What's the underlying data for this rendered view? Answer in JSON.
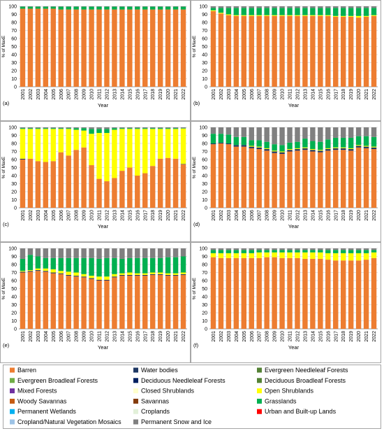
{
  "colors": {
    "Barren": "#ED7D31",
    "Water bodies": "#1F3864",
    "Evergreen Needleleaf Forests": "#548235",
    "Evergreen Broadleaf Forests": "#70AD47",
    "Deciduous Needleleaf Forests": "#002060",
    "Deciduous Broadleaf Forests": "#548235",
    "Mixed Forests": "#7030A0",
    "Closed Shrublands": "#FFFFCC",
    "Open Shrublands": "#FFFF00",
    "Woody Savannas": "#C55A11",
    "Savannas": "#843C0C",
    "Grasslands": "#00B050",
    "Permanent Wetlands": "#00B0F0",
    "Croplands": "#E2F0D9",
    "Urban and Built-up Lands": "#FF0000",
    "Cropland/Natural Vegetation Mosaics": "#9DC3E6",
    "Permanent Snow and Ice": "#808080"
  },
  "legend": {
    "entries": [
      "Barren",
      "Water bodies",
      "Evergreen Needleleaf Forests",
      "Evergreen Broadleaf Forests",
      "Deciduous Needleleaf Forests",
      "Deciduous Broadleaf Forests",
      "Mixed Forests",
      "Closed Shrublands",
      "Open Shrublands",
      "Woody Savannas",
      "Savannas",
      "Grasslands",
      "Permanent Wetlands",
      "Croplands",
      "Urban and Built-up Lands",
      "Cropland/Natural Vegetation Mosaics",
      "Permanent Snow and Ice"
    ]
  },
  "chart_data": [
    {
      "type": "bar",
      "stacked": true,
      "label": "(a)",
      "xlabel": "Year",
      "ylabel": "% of MaxE",
      "ylim": [
        0,
        100
      ],
      "yticks": [
        0,
        10,
        20,
        30,
        40,
        50,
        60,
        70,
        80,
        90,
        100
      ],
      "categories": [
        "2001",
        "2002",
        "2003",
        "2004",
        "2005",
        "2006",
        "2007",
        "2008",
        "2009",
        "2010",
        "2011",
        "2012",
        "2013",
        "2014",
        "2015",
        "2016",
        "2017",
        "2018",
        "2019",
        "2020",
        "2021",
        "2022"
      ],
      "series": [
        {
          "name": "Barren",
          "values": [
            97,
            97,
            97,
            97,
            97,
            96,
            96,
            96,
            96,
            96,
            96,
            96,
            96,
            96,
            96,
            96,
            96,
            96,
            96,
            96,
            96,
            96
          ]
        },
        {
          "name": "Grasslands",
          "values": [
            2.5,
            2.5,
            2.5,
            2.5,
            2.5,
            3.5,
            3.5,
            3.5,
            3.5,
            3.5,
            3.5,
            3.5,
            3.5,
            3.5,
            3.5,
            3.5,
            3.5,
            3.5,
            3.5,
            3.5,
            3.5,
            3.5
          ]
        },
        {
          "name": "Permanent Snow and Ice",
          "values": [
            0.5,
            0.5,
            0.5,
            0.5,
            0.5,
            0.5,
            0.5,
            0.5,
            0.5,
            0.5,
            0.5,
            0.5,
            0.5,
            0.5,
            0.5,
            0.5,
            0.5,
            0.5,
            0.5,
            0.5,
            0.5,
            0.5
          ]
        }
      ]
    },
    {
      "type": "bar",
      "stacked": true,
      "label": "(b)",
      "xlabel": "Year",
      "ylabel": "% of MaxE",
      "ylim": [
        0,
        100
      ],
      "yticks": [
        0,
        10,
        20,
        30,
        40,
        50,
        60,
        70,
        80,
        90,
        100
      ],
      "categories": [
        "2001",
        "2002",
        "2003",
        "2004",
        "2005",
        "2006",
        "2007",
        "2008",
        "2009",
        "2010",
        "2011",
        "2012",
        "2013",
        "2014",
        "2015",
        "2016",
        "2017",
        "2018",
        "2019",
        "2020",
        "2021",
        "2022"
      ],
      "series": [
        {
          "name": "Barren",
          "values": [
            94,
            91,
            89,
            88,
            88,
            88,
            88,
            88,
            88,
            88,
            88,
            88,
            88,
            88,
            88,
            88,
            87,
            87,
            87,
            86,
            87,
            88
          ]
        },
        {
          "name": "Open Shrublands",
          "values": [
            1,
            1,
            1,
            1,
            1,
            1,
            1,
            1,
            1,
            1,
            1,
            1,
            1,
            1,
            1,
            1,
            1,
            1,
            1,
            2,
            1,
            1
          ]
        },
        {
          "name": "Grasslands",
          "values": [
            3,
            6,
            8,
            9,
            9,
            9,
            9,
            9,
            9,
            9,
            9,
            9,
            9,
            9,
            9,
            9,
            10,
            10,
            10,
            10,
            10,
            9
          ]
        },
        {
          "name": "Permanent Snow and Ice",
          "values": [
            2,
            2,
            2,
            2,
            2,
            2,
            2,
            2,
            2,
            2,
            2,
            2,
            2,
            2,
            2,
            2,
            2,
            2,
            2,
            2,
            2,
            2
          ]
        }
      ]
    },
    {
      "type": "bar",
      "stacked": true,
      "label": "(c)",
      "xlabel": "Year",
      "ylabel": "% of MaxE",
      "ylim": [
        0,
        100
      ],
      "yticks": [
        0,
        10,
        20,
        30,
        40,
        50,
        60,
        70,
        80,
        90,
        100
      ],
      "categories": [
        "2001",
        "2002",
        "2003",
        "2004",
        "2005",
        "2006",
        "2007",
        "2008",
        "2009",
        "2010",
        "2011",
        "2012",
        "2013",
        "2014",
        "2015",
        "2016",
        "2017",
        "2018",
        "2019",
        "2020",
        "2021",
        "2022"
      ],
      "series": [
        {
          "name": "Barren",
          "values": [
            60,
            61,
            58,
            57,
            58,
            69,
            65,
            72,
            75,
            53,
            36,
            33,
            37,
            46,
            50,
            40,
            43,
            52,
            61,
            62,
            61,
            54
          ]
        },
        {
          "name": "Water bodies",
          "values": [
            1,
            0,
            0,
            0,
            0,
            0,
            0,
            0,
            0,
            0,
            0,
            0,
            0,
            0,
            0,
            0,
            0,
            0,
            0,
            0,
            0,
            0.5
          ]
        },
        {
          "name": "Open Shrublands",
          "values": [
            37,
            37,
            40,
            41,
            40,
            29,
            33,
            25,
            21,
            39,
            57,
            60,
            60,
            52,
            48,
            58,
            55,
            46,
            37,
            36,
            37,
            44
          ]
        },
        {
          "name": "Grasslands",
          "values": [
            1,
            1,
            1,
            1,
            1,
            1,
            1,
            2,
            3,
            6,
            5,
            5,
            2,
            1,
            1,
            1,
            1,
            1,
            1,
            1,
            1,
            0.5
          ]
        },
        {
          "name": "Permanent Snow and Ice",
          "values": [
            1,
            1,
            1,
            1,
            1,
            1,
            1,
            1,
            1,
            2,
            2,
            2,
            1,
            1,
            1,
            1,
            1,
            1,
            1,
            1,
            1,
            1
          ]
        }
      ]
    },
    {
      "type": "bar",
      "stacked": true,
      "label": "(d)",
      "xlabel": "Year",
      "ylabel": "% of MaxE",
      "ylim": [
        0,
        100
      ],
      "yticks": [
        0,
        10,
        20,
        30,
        40,
        50,
        60,
        70,
        80,
        90,
        100
      ],
      "categories": [
        "2001",
        "2002",
        "2003",
        "2004",
        "2005",
        "2006",
        "2007",
        "2008",
        "2009",
        "2010",
        "2011",
        "2012",
        "2013",
        "2014",
        "2015",
        "2016",
        "2017",
        "2018",
        "2019",
        "2020",
        "2021",
        "2022"
      ],
      "series": [
        {
          "name": "Barren",
          "values": [
            79,
            80,
            79,
            76,
            76,
            74,
            73,
            71,
            68,
            67,
            70,
            71,
            72,
            70,
            69,
            71,
            72,
            72,
            71,
            75,
            74,
            73
          ]
        },
        {
          "name": "Water bodies",
          "values": [
            1,
            1,
            1,
            2,
            2,
            2,
            2,
            2,
            2,
            2,
            2,
            2,
            2,
            2,
            2,
            2,
            2,
            2,
            2,
            2,
            2,
            2
          ]
        },
        {
          "name": "Open Shrublands",
          "values": [
            0,
            0,
            0,
            0,
            0,
            1,
            1,
            1,
            1,
            1,
            1,
            1,
            1,
            1,
            1,
            1,
            1,
            1,
            1,
            1,
            1,
            1
          ]
        },
        {
          "name": "Grasslands",
          "values": [
            12,
            11,
            11,
            10,
            10,
            7,
            8,
            8,
            8,
            8,
            8,
            8,
            11,
            10,
            10,
            11,
            12,
            12,
            13,
            11,
            12,
            12
          ]
        },
        {
          "name": "Permanent Snow and Ice",
          "values": [
            8,
            8,
            9,
            12,
            12,
            16,
            16,
            18,
            21,
            22,
            19,
            18,
            14,
            17,
            18,
            15,
            13,
            13,
            13,
            11,
            11,
            12
          ]
        }
      ]
    },
    {
      "type": "bar",
      "stacked": true,
      "label": "(e)",
      "xlabel": "Year",
      "ylabel": "% of MaxE",
      "ylim": [
        0,
        100
      ],
      "yticks": [
        0,
        10,
        20,
        30,
        40,
        50,
        60,
        70,
        80,
        90,
        100
      ],
      "categories": [
        "2001",
        "2002",
        "2003",
        "2004",
        "2005",
        "2006",
        "2007",
        "2008",
        "2009",
        "2010",
        "2011",
        "2012",
        "2013",
        "2014",
        "2015",
        "2016",
        "2017",
        "2018",
        "2019",
        "2020",
        "2021",
        "2022"
      ],
      "series": [
        {
          "name": "Barren",
          "values": [
            70,
            71,
            72,
            71,
            69,
            68,
            66,
            65,
            64,
            62,
            60,
            60,
            64,
            66,
            66,
            66,
            66,
            67,
            67,
            66,
            66,
            67
          ]
        },
        {
          "name": "Water bodies",
          "values": [
            1,
            1,
            1,
            1,
            1,
            1,
            1,
            1,
            1,
            1,
            1,
            1,
            1,
            1,
            1,
            1,
            1,
            1,
            1,
            1,
            1,
            1
          ]
        },
        {
          "name": "Open Shrublands",
          "values": [
            1,
            1,
            2,
            3,
            4,
            3,
            4,
            4,
            3,
            3,
            4,
            4,
            3,
            2,
            3,
            2,
            2,
            2,
            2,
            2,
            2,
            2
          ]
        },
        {
          "name": "Grasslands",
          "values": [
            15,
            19,
            15,
            13,
            14,
            16,
            17,
            18,
            20,
            22,
            22,
            23,
            20,
            18,
            18,
            19,
            19,
            18,
            18,
            20,
            20,
            20
          ]
        },
        {
          "name": "Permanent Snow and Ice",
          "values": [
            13,
            8,
            10,
            12,
            12,
            12,
            12,
            12,
            12,
            12,
            13,
            12,
            12,
            13,
            12,
            12,
            12,
            12,
            12,
            11,
            11,
            10
          ]
        }
      ]
    },
    {
      "type": "bar",
      "stacked": true,
      "label": "(f)",
      "xlabel": "Year",
      "ylabel": "% of MaxE",
      "ylim": [
        0,
        100
      ],
      "yticks": [
        0,
        10,
        20,
        30,
        40,
        50,
        60,
        70,
        80,
        90,
        100
      ],
      "categories": [
        "2001",
        "2002",
        "2003",
        "2004",
        "2005",
        "2006",
        "2007",
        "2008",
        "2009",
        "2010",
        "2011",
        "2012",
        "2013",
        "2014",
        "2015",
        "2016",
        "2017",
        "2018",
        "2019",
        "2020",
        "2021",
        "2022"
      ],
      "series": [
        {
          "name": "Barren",
          "values": [
            89,
            88,
            88,
            88,
            88,
            88,
            88,
            89,
            89,
            88,
            88,
            88,
            87,
            87,
            87,
            86,
            85,
            85,
            85,
            85,
            86,
            88
          ]
        },
        {
          "name": "Open Shrublands",
          "values": [
            5,
            6,
            6,
            6,
            6,
            6,
            7,
            6,
            6,
            7,
            7,
            7,
            8,
            8,
            8,
            8,
            9,
            9,
            9,
            9,
            8,
            7
          ]
        },
        {
          "name": "Grasslands",
          "values": [
            4,
            4,
            4,
            4,
            4,
            4,
            3,
            3,
            3,
            3,
            3,
            3,
            3,
            3,
            3,
            4,
            4,
            4,
            4,
            4,
            4,
            3
          ]
        },
        {
          "name": "Permanent Snow and Ice",
          "values": [
            2,
            2,
            2,
            2,
            2,
            2,
            2,
            2,
            2,
            2,
            2,
            2,
            2,
            2,
            2,
            2,
            2,
            2,
            2,
            2,
            2,
            2
          ]
        }
      ]
    }
  ]
}
